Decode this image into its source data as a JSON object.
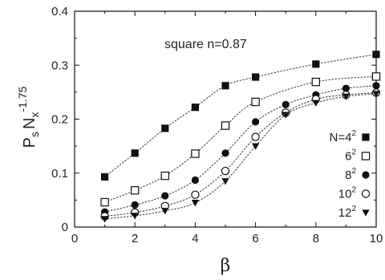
{
  "chart_data": {
    "type": "scatter",
    "title": "",
    "annotation": "square  n=0.87",
    "xlabel": "β",
    "ylabel": {
      "main": "P",
      "sub_s": "s",
      "mid": "N",
      "sub_x": "x",
      "sup": "-1.75"
    },
    "xlim": [
      0,
      10
    ],
    "ylim": [
      0,
      0.4
    ],
    "x_ticks": [
      "0",
      "2",
      "4",
      "6",
      "8",
      "10"
    ],
    "y_ticks": [
      "0",
      "0.1",
      "0.2",
      "0.3",
      "0.4"
    ],
    "grid": false,
    "legend_position": "right",
    "fit_lines": "dotted",
    "series": [
      {
        "name_base": "N=4",
        "name_sup": "2",
        "marker": "filled-square",
        "x": [
          1,
          2,
          3,
          4,
          5,
          6,
          8,
          10
        ],
        "y": [
          0.093,
          0.137,
          0.183,
          0.222,
          0.262,
          0.278,
          0.302,
          0.32
        ]
      },
      {
        "name_base": "6",
        "name_sup": "2",
        "marker": "open-square",
        "x": [
          1,
          2,
          3,
          4,
          5,
          6,
          8,
          10
        ],
        "y": [
          0.046,
          0.068,
          0.095,
          0.136,
          0.188,
          0.232,
          0.269,
          0.279
        ]
      },
      {
        "name_base": "8",
        "name_sup": "2",
        "marker": "filled-circle",
        "x": [
          1,
          2,
          3,
          4,
          5,
          6,
          7,
          8,
          9,
          10
        ],
        "y": [
          0.028,
          0.041,
          0.058,
          0.087,
          0.137,
          0.195,
          0.227,
          0.245,
          0.257,
          0.262
        ]
      },
      {
        "name_base": "10",
        "name_sup": "2",
        "marker": "open-circle",
        "x": [
          1,
          2,
          3,
          4,
          5,
          6,
          7,
          8,
          9,
          10
        ],
        "y": [
          0.02,
          0.027,
          0.039,
          0.06,
          0.104,
          0.167,
          0.212,
          0.237,
          0.245,
          0.249
        ]
      },
      {
        "name_base": "12",
        "name_sup": "2",
        "marker": "filled-triangle-down",
        "x": [
          1,
          2,
          3,
          4,
          5,
          6,
          7,
          8,
          9,
          10
        ],
        "y": [
          0.015,
          0.021,
          0.03,
          0.045,
          0.085,
          0.15,
          0.208,
          0.23,
          0.242,
          0.247
        ]
      }
    ]
  }
}
